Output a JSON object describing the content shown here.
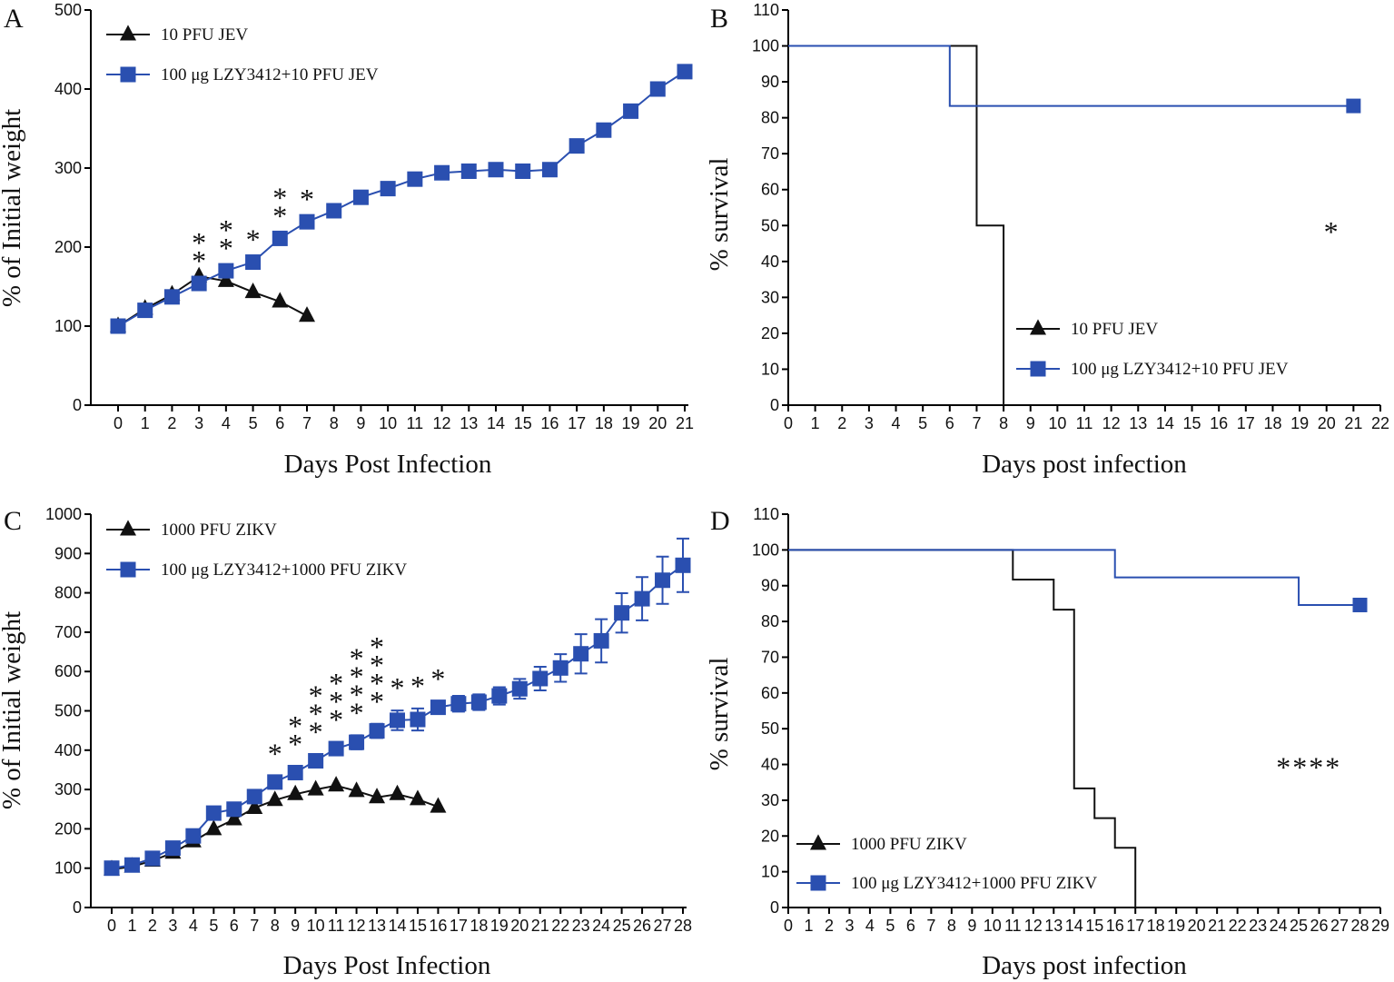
{
  "colors": {
    "treated": "#2a4fb0",
    "control": "#111111",
    "axis": "#000000"
  },
  "chart_data": [
    {
      "panel": "A",
      "type": "line",
      "xlabel": "Days Post Infection",
      "ylabel": "% of Initial weight",
      "xlim": [
        0,
        21
      ],
      "ylim": [
        0,
        500
      ],
      "xticks": [
        0,
        1,
        2,
        3,
        4,
        5,
        6,
        7,
        8,
        9,
        10,
        11,
        12,
        13,
        14,
        15,
        16,
        17,
        18,
        19,
        20,
        21
      ],
      "yticks": [
        0,
        100,
        200,
        300,
        400,
        500
      ],
      "legend_position": "top-left",
      "series": [
        {
          "name": "10 PFU JEV",
          "marker": "triangle",
          "color": "#111111",
          "x": [
            0,
            1,
            2,
            3,
            4,
            5,
            6,
            7
          ],
          "y": [
            100,
            122,
            140,
            163,
            157,
            143,
            131,
            113
          ]
        },
        {
          "name": "100 μg LZY3412+10 PFU JEV",
          "marker": "square",
          "color": "#2a4fb0",
          "x": [
            0,
            1,
            2,
            3,
            4,
            5,
            6,
            7,
            8,
            9,
            10,
            11,
            12,
            13,
            14,
            15,
            16,
            17,
            18,
            19,
            20,
            21
          ],
          "y": [
            100,
            120,
            137,
            154,
            170,
            181,
            211,
            232,
            246,
            263,
            274,
            286,
            294,
            296,
            298,
            296,
            298,
            328,
            348,
            372,
            400,
            422
          ]
        }
      ],
      "annotations": [
        {
          "x": 3,
          "text": "**"
        },
        {
          "x": 4,
          "text": "**"
        },
        {
          "x": 5,
          "text": "*"
        },
        {
          "x": 6,
          "text": "**"
        },
        {
          "x": 7,
          "text": "*"
        }
      ]
    },
    {
      "panel": "B",
      "type": "line",
      "step": true,
      "xlabel": "Days post infection",
      "ylabel": "% survival",
      "xlim": [
        0,
        22
      ],
      "ylim": [
        0,
        110
      ],
      "xticks": [
        0,
        1,
        2,
        3,
        4,
        5,
        6,
        7,
        8,
        9,
        10,
        11,
        12,
        13,
        14,
        15,
        16,
        17,
        18,
        19,
        20,
        21,
        22
      ],
      "yticks": [
        0,
        10,
        20,
        30,
        40,
        50,
        60,
        70,
        80,
        90,
        100,
        110
      ],
      "legend_position": "lower-middle",
      "significance": {
        "text": "*",
        "x": 20.2,
        "y": 49
      },
      "series": [
        {
          "name": "10 PFU JEV",
          "marker": "triangle",
          "color": "#111111",
          "x": [
            0,
            7,
            8
          ],
          "y": [
            100,
            50,
            0
          ],
          "end_marker": false
        },
        {
          "name": "100 μg LZY3412+10 PFU JEV",
          "marker": "square",
          "color": "#2a4fb0",
          "x": [
            0,
            6,
            21
          ],
          "y": [
            100,
            83.3,
            83.3
          ],
          "end_marker": true
        }
      ]
    },
    {
      "panel": "C",
      "type": "line",
      "xlabel": "Days Post Infection",
      "ylabel": "% of Initial weight",
      "xlim": [
        0,
        28
      ],
      "ylim": [
        0,
        1000
      ],
      "xticks": [
        0,
        1,
        2,
        3,
        4,
        5,
        6,
        7,
        8,
        9,
        10,
        11,
        12,
        13,
        14,
        15,
        16,
        17,
        18,
        19,
        20,
        21,
        22,
        23,
        24,
        25,
        26,
        27,
        28
      ],
      "yticks": [
        0,
        100,
        200,
        300,
        400,
        500,
        600,
        700,
        800,
        900,
        1000
      ],
      "legend_position": "top-left",
      "series": [
        {
          "name": "1000 PFU ZIKV",
          "marker": "triangle",
          "color": "#111111",
          "x": [
            0,
            1,
            2,
            3,
            4,
            5,
            6,
            7,
            8,
            9,
            10,
            11,
            12,
            13,
            14,
            15,
            16
          ],
          "y": [
            97,
            104,
            119,
            139,
            168,
            199,
            224,
            253,
            273,
            288,
            300,
            310,
            296,
            280,
            288,
            275,
            256
          ]
        },
        {
          "name": "100 μg LZY3412+1000 PFU ZIKV",
          "marker": "square",
          "color": "#2a4fb0",
          "x": [
            0,
            1,
            2,
            3,
            4,
            5,
            6,
            7,
            8,
            9,
            10,
            11,
            12,
            13,
            14,
            15,
            16,
            17,
            18,
            19,
            20,
            21,
            22,
            23,
            24,
            25,
            26,
            27,
            28
          ],
          "y": [
            100,
            108,
            125,
            151,
            182,
            240,
            250,
            282,
            319,
            343,
            373,
            404,
            420,
            449,
            476,
            478,
            509,
            518,
            522,
            538,
            556,
            582,
            609,
            645,
            678,
            749,
            785,
            832,
            870
          ],
          "err": [
            0,
            8,
            10,
            10,
            12,
            14,
            14,
            14,
            15,
            15,
            16,
            16,
            18,
            18,
            25,
            28,
            15,
            20,
            20,
            22,
            25,
            30,
            35,
            50,
            55,
            50,
            55,
            60,
            68
          ]
        }
      ],
      "annotations": [
        {
          "x": 8,
          "text": "*"
        },
        {
          "x": 9,
          "text": "**"
        },
        {
          "x": 10,
          "text": "***"
        },
        {
          "x": 11,
          "text": "***"
        },
        {
          "x": 12,
          "text": "****"
        },
        {
          "x": 13,
          "text": "****"
        },
        {
          "x": 14,
          "text": "*"
        },
        {
          "x": 15,
          "text": "*"
        },
        {
          "x": 16,
          "text": "*"
        }
      ]
    },
    {
      "panel": "D",
      "type": "line",
      "step": true,
      "xlabel": "Days post infection",
      "ylabel": "% survival",
      "xlim": [
        0,
        29
      ],
      "ylim": [
        0,
        110
      ],
      "xticks": [
        0,
        1,
        2,
        3,
        4,
        5,
        6,
        7,
        8,
        9,
        10,
        11,
        12,
        13,
        14,
        15,
        16,
        17,
        18,
        19,
        20,
        21,
        22,
        23,
        24,
        25,
        26,
        27,
        28,
        29
      ],
      "yticks": [
        0,
        10,
        20,
        30,
        40,
        50,
        60,
        70,
        80,
        90,
        100,
        110
      ],
      "legend_position": "bottom-left",
      "significance": {
        "text": "****",
        "x": 25.5,
        "y": 40
      },
      "series": [
        {
          "name": "1000 PFU ZIKV",
          "marker": "triangle",
          "color": "#111111",
          "x": [
            0,
            11,
            13,
            14,
            15,
            16,
            17
          ],
          "y": [
            100,
            91.7,
            83.3,
            33.3,
            25,
            16.7,
            0
          ],
          "end_marker": false
        },
        {
          "name": "100 μg LZY3412+1000 PFU ZIKV",
          "marker": "square",
          "color": "#2a4fb0",
          "x": [
            0,
            16,
            25,
            28
          ],
          "y": [
            100,
            92.3,
            84.6,
            84.6
          ],
          "end_marker": true
        }
      ]
    }
  ]
}
